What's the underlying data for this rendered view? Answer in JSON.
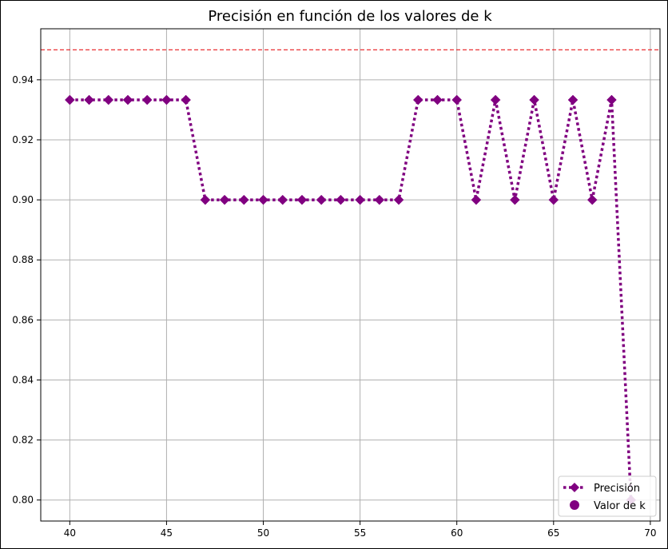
{
  "chart_data": {
    "type": "line",
    "title": "Precisión en función de los valores de k",
    "xlabel": "",
    "ylabel": "",
    "xlim": [
      38.5,
      70.5
    ],
    "ylim": [
      0.793,
      0.957
    ],
    "xticks": [
      40,
      45,
      50,
      55,
      60,
      65,
      70
    ],
    "xtick_labels": [
      "40",
      "45",
      "50",
      "55",
      "60",
      "65",
      "70"
    ],
    "yticks": [
      0.8,
      0.82,
      0.84,
      0.86,
      0.88,
      0.9,
      0.92,
      0.94
    ],
    "ytick_labels": [
      "0.80",
      "0.82",
      "0.84",
      "0.86",
      "0.88",
      "0.90",
      "0.92",
      "0.94"
    ],
    "grid": true,
    "reference_line": {
      "y": 0.95,
      "style": "dashed",
      "color": "#e8191c"
    },
    "legend_position": "lower-right",
    "series": [
      {
        "name": "Precisión",
        "color": "#800080",
        "line_style": "dotted",
        "marker": "diamond",
        "x": [
          40,
          41,
          42,
          43,
          44,
          45,
          46,
          47,
          48,
          49,
          50,
          51,
          52,
          53,
          54,
          55,
          56,
          57,
          58,
          59,
          60,
          61,
          62,
          63,
          64,
          65,
          66,
          67,
          68,
          69
        ],
        "y": [
          0.9333,
          0.9333,
          0.9333,
          0.9333,
          0.9333,
          0.9333,
          0.9333,
          0.9,
          0.9,
          0.9,
          0.9,
          0.9,
          0.9,
          0.9,
          0.9,
          0.9,
          0.9,
          0.9,
          0.9333,
          0.9333,
          0.9333,
          0.9,
          0.9333,
          0.9,
          0.9333,
          0.9,
          0.9333,
          0.9,
          0.9333,
          0.8
        ]
      },
      {
        "name": "Valor de k",
        "color": "#800080",
        "marker": "circle",
        "line_style": "none",
        "x": [],
        "y": []
      }
    ]
  }
}
